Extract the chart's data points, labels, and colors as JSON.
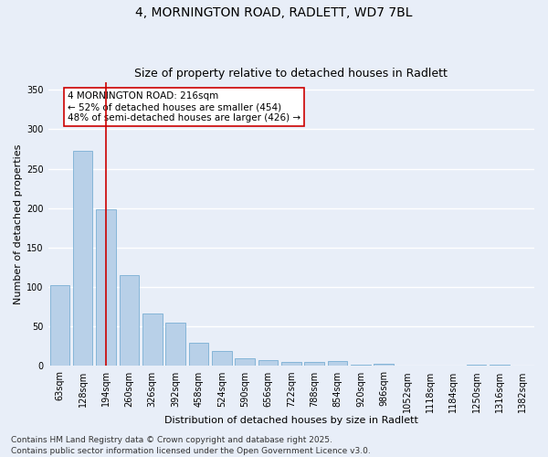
{
  "title1": "4, MORNINGTON ROAD, RADLETT, WD7 7BL",
  "title2": "Size of property relative to detached houses in Radlett",
  "xlabel": "Distribution of detached houses by size in Radlett",
  "ylabel": "Number of detached properties",
  "categories": [
    "63sqm",
    "128sqm",
    "194sqm",
    "260sqm",
    "326sqm",
    "392sqm",
    "458sqm",
    "524sqm",
    "590sqm",
    "656sqm",
    "722sqm",
    "788sqm",
    "854sqm",
    "920sqm",
    "986sqm",
    "1052sqm",
    "1118sqm",
    "1184sqm",
    "1250sqm",
    "1316sqm",
    "1382sqm"
  ],
  "values": [
    103,
    273,
    198,
    115,
    67,
    55,
    29,
    19,
    10,
    8,
    5,
    5,
    6,
    2,
    3,
    1,
    0,
    0,
    2,
    2,
    1
  ],
  "bar_color": "#b8d0e8",
  "bar_edge_color": "#7aafd4",
  "red_line_x": 2.5,
  "annotation_text": "4 MORNINGTON ROAD: 216sqm\n← 52% of detached houses are smaller (454)\n48% of semi-detached houses are larger (426) →",
  "annotation_box_facecolor": "#ffffff",
  "annotation_box_edgecolor": "#cc0000",
  "ylim": [
    0,
    360
  ],
  "yticks": [
    0,
    50,
    100,
    150,
    200,
    250,
    300,
    350
  ],
  "footer_text": "Contains HM Land Registry data © Crown copyright and database right 2025.\nContains public sector information licensed under the Open Government Licence v3.0.",
  "background_color": "#e8eef8",
  "plot_background_color": "#e8eef8",
  "grid_color": "#ffffff",
  "title_fontsize": 10,
  "subtitle_fontsize": 9,
  "axis_label_fontsize": 8,
  "tick_fontsize": 7,
  "annotation_fontsize": 7.5,
  "footer_fontsize": 6.5
}
